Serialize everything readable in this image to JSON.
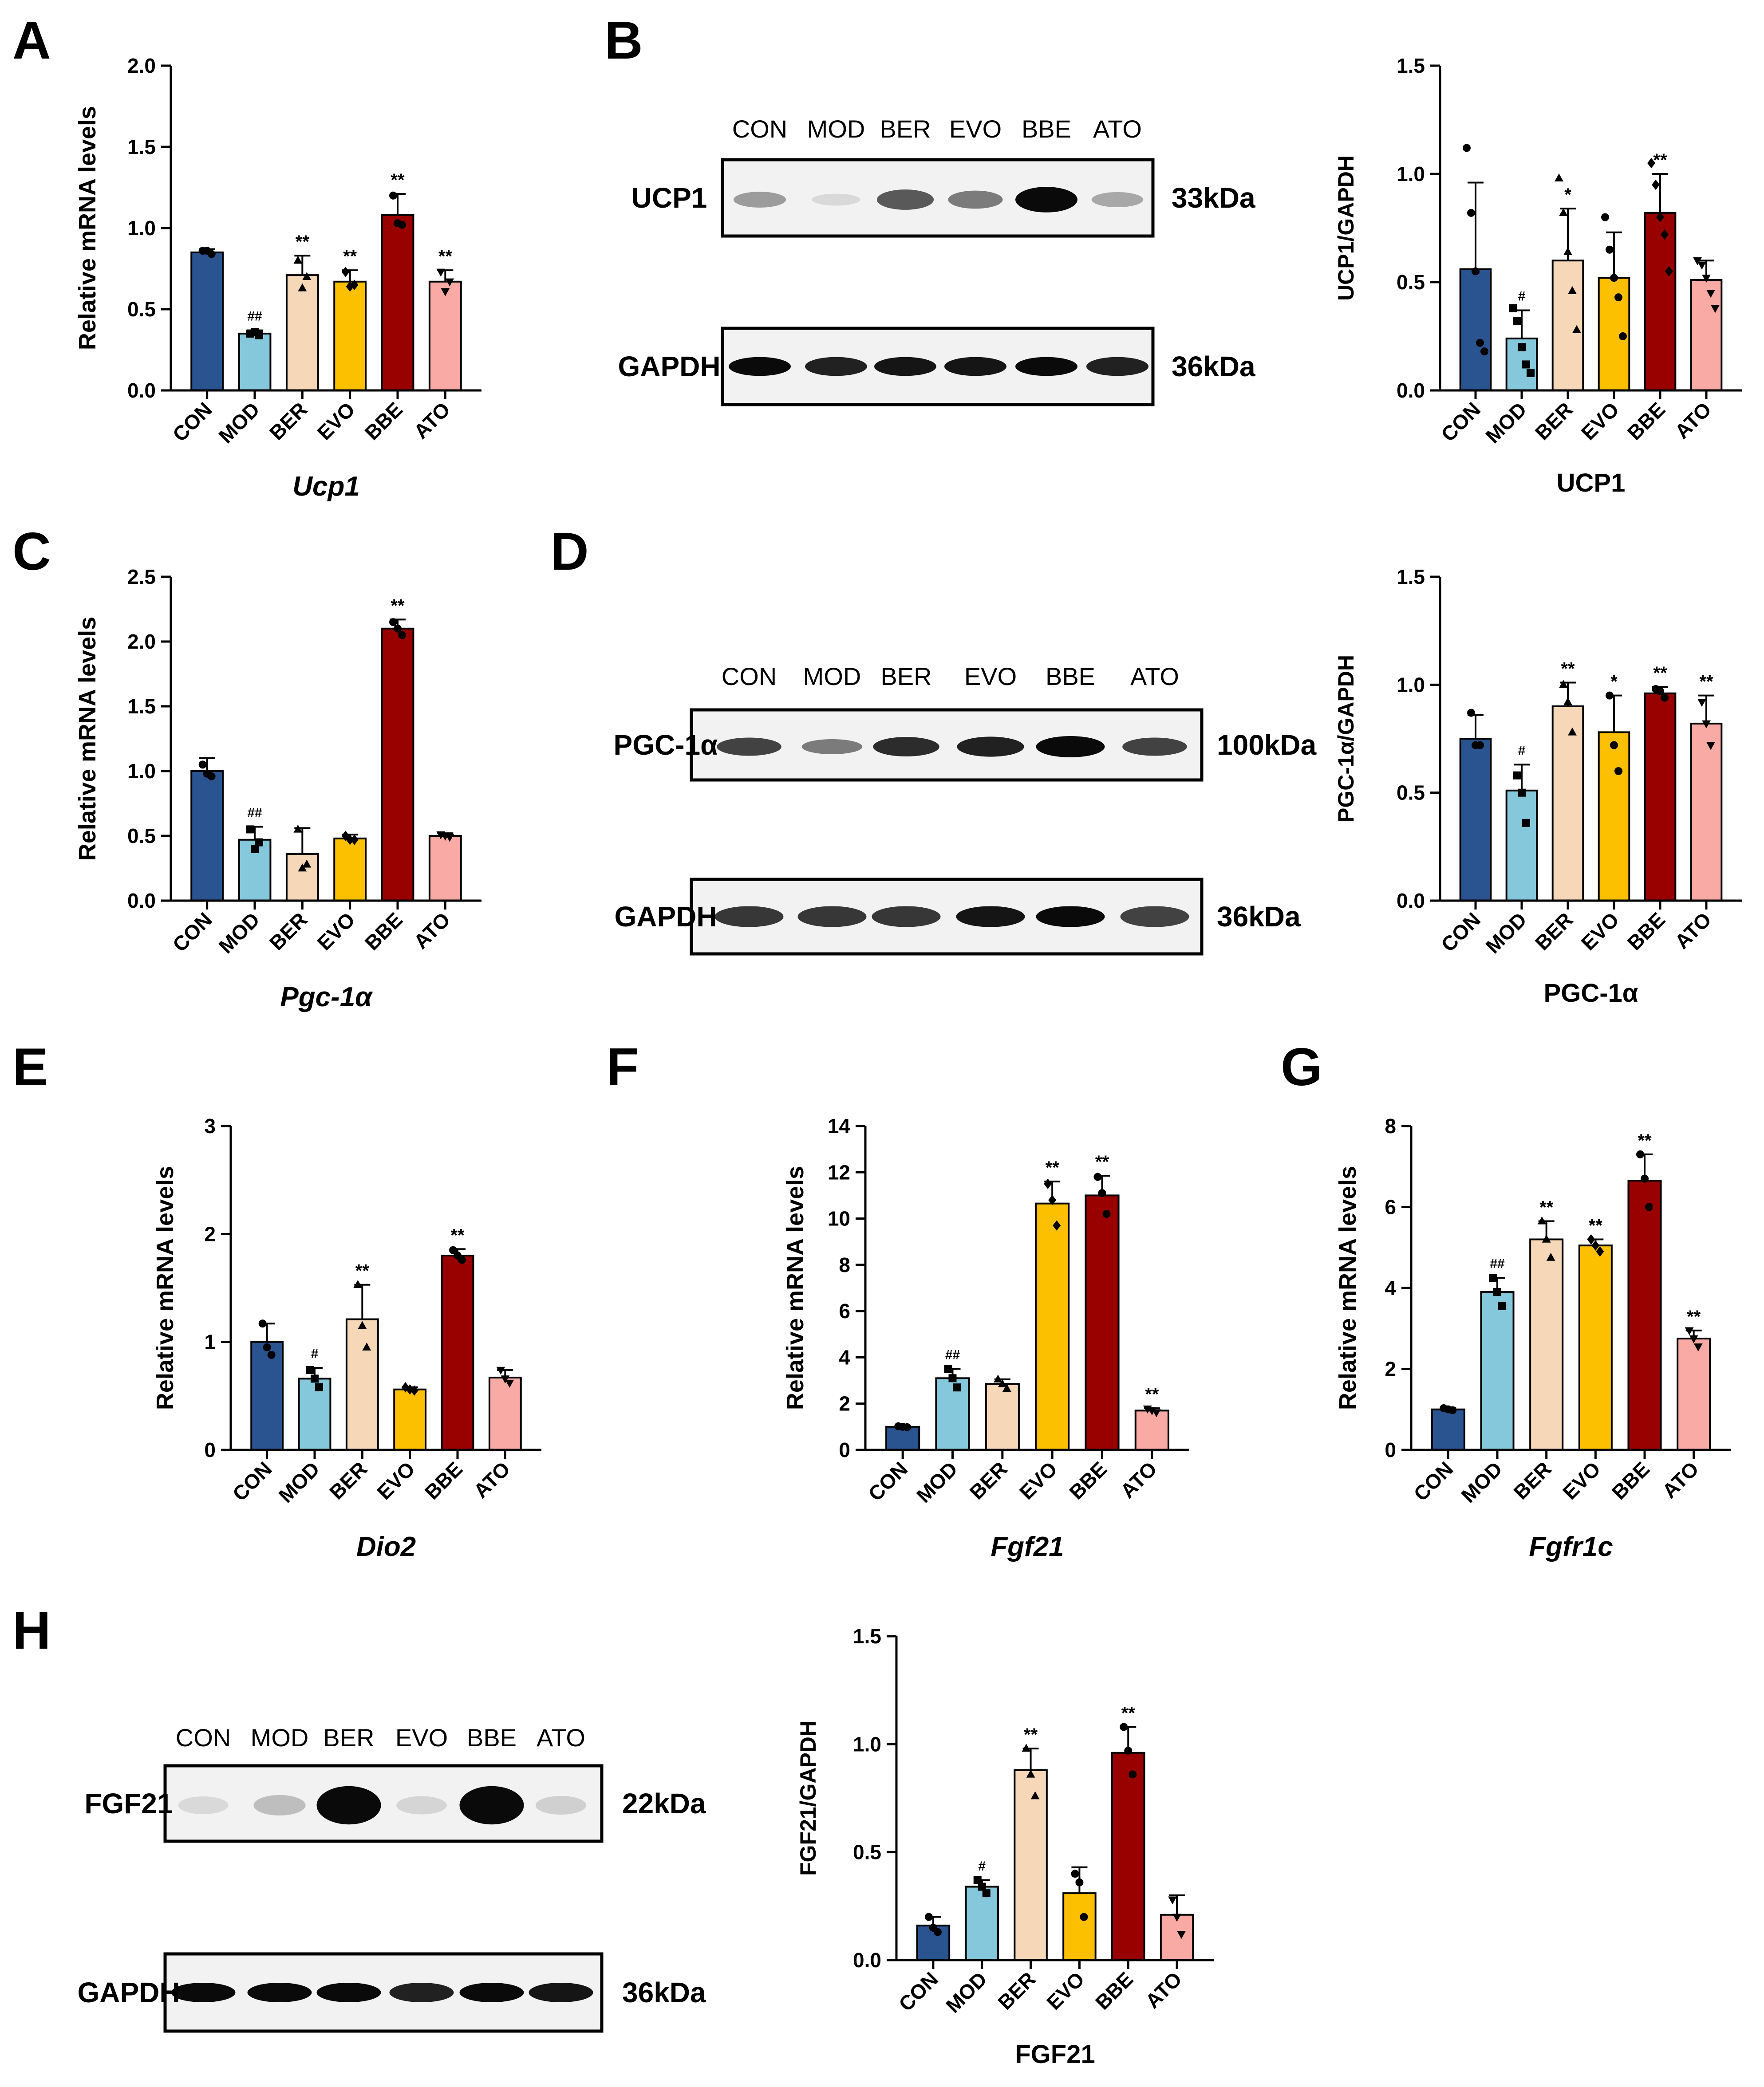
{
  "colors": {
    "CON": "#2a5490",
    "MOD": "#85c8dc",
    "BER": "#f6d7b8",
    "EVO": "#fcc000",
    "BBE": "#990000",
    "ATO": "#f9aaa5"
  },
  "groups": [
    "CON",
    "MOD",
    "BER",
    "EVO",
    "BBE",
    "ATO"
  ],
  "panels": {
    "A": "A",
    "B": "B",
    "C": "C",
    "D": "D",
    "E": "E",
    "F": "F",
    "G": "G",
    "H": "H"
  },
  "blots": [
    {
      "id": "B",
      "lanes": [
        "CON",
        "MOD",
        "BER",
        "EVO",
        "BBE",
        "ATO"
      ],
      "proteins": [
        {
          "name": "UCP1",
          "size": "33kDa",
          "intensity": [
            0.35,
            0.08,
            0.65,
            0.5,
            1.0,
            0.3
          ]
        },
        {
          "name": "GAPDH",
          "size": "36kDa",
          "intensity": [
            1,
            0.9,
            0.95,
            0.95,
            1,
            0.9
          ]
        }
      ]
    },
    {
      "id": "D",
      "lanes": [
        "CON",
        "MOD",
        "BER",
        "EVO",
        "BBE",
        "ATO"
      ],
      "proteins": [
        {
          "name": "PGC-1α",
          "size": "100kDa",
          "intensity": [
            0.75,
            0.5,
            0.85,
            0.9,
            1.0,
            0.75
          ]
        },
        {
          "name": "GAPDH",
          "size": "36kDa",
          "intensity": [
            0.8,
            0.8,
            0.8,
            0.95,
            1.0,
            0.75
          ]
        }
      ]
    },
    {
      "id": "H",
      "lanes": [
        "CON",
        "MOD",
        "BER",
        "EVO",
        "BBE",
        "ATO"
      ],
      "proteins": [
        {
          "name": "FGF21",
          "size": "22kDa",
          "intensity": [
            0.08,
            0.2,
            1.0,
            0.1,
            1.0,
            0.12
          ]
        },
        {
          "name": "GAPDH",
          "size": "36kDa",
          "intensity": [
            1,
            1,
            1,
            0.9,
            1,
            0.95
          ]
        }
      ]
    }
  ],
  "chart_data": [
    {
      "id": "A",
      "type": "bar",
      "categories": [
        "CON",
        "MOD",
        "BER",
        "EVO",
        "BBE",
        "ATO"
      ],
      "values": [
        0.85,
        0.35,
        0.71,
        0.67,
        1.08,
        0.67
      ],
      "errors": [
        0.02,
        0.02,
        0.12,
        0.07,
        0.13,
        0.07
      ],
      "points": [
        [
          0.86,
          0.86,
          0.84
        ],
        [
          0.35,
          0.36,
          0.34
        ],
        [
          0.8,
          0.63,
          0.7
        ],
        [
          0.73,
          0.64,
          0.65
        ],
        [
          1.2,
          1.03,
          1.02
        ],
        [
          0.73,
          0.61,
          0.67
        ]
      ],
      "markers": [
        "circle",
        "square",
        "triangle",
        "diamond",
        "circle",
        "triangle-down"
      ],
      "significance": [
        "",
        "##",
        "**",
        "**",
        "**",
        "**"
      ],
      "ylabel": "Relative mRNA levels",
      "xlabel": "Ucp1",
      "xlabel_italic": true,
      "ylim": [
        0,
        2.0
      ],
      "yticks": [
        "0.0",
        "0.5",
        "1.0",
        "1.5",
        "2.0"
      ]
    },
    {
      "id": "B",
      "type": "bar",
      "categories": [
        "CON",
        "MOD",
        "BER",
        "EVO",
        "BBE",
        "ATO"
      ],
      "values": [
        0.56,
        0.24,
        0.6,
        0.52,
        0.82,
        0.51
      ],
      "errors": [
        0.4,
        0.13,
        0.24,
        0.21,
        0.18,
        0.09
      ],
      "points": [
        [
          1.12,
          0.82,
          0.55,
          0.22,
          0.18
        ],
        [
          0.38,
          0.32,
          0.2,
          0.12,
          0.08
        ],
        [
          0.98,
          0.82,
          0.64,
          0.46,
          0.28
        ],
        [
          0.8,
          0.65,
          0.52,
          0.43,
          0.25
        ],
        [
          1.05,
          0.95,
          0.8,
          0.72,
          0.55
        ],
        [
          0.6,
          0.58,
          0.52,
          0.45,
          0.38
        ]
      ],
      "markers": [
        "circle",
        "square",
        "triangle",
        "circle",
        "diamond",
        "triangle-down"
      ],
      "significance": [
        "",
        "#",
        "*",
        "",
        "**",
        ""
      ],
      "ylabel": "UCP1/GAPDH",
      "xlabel": "UCP1",
      "xlabel_italic": false,
      "ylim": [
        0,
        1.5
      ],
      "yticks": [
        "0.0",
        "0.5",
        "1.0",
        "1.5"
      ]
    },
    {
      "id": "C",
      "type": "bar",
      "categories": [
        "CON",
        "MOD",
        "BER",
        "EVO",
        "BBE",
        "ATO"
      ],
      "values": [
        1.0,
        0.47,
        0.36,
        0.48,
        2.1,
        0.5
      ],
      "errors": [
        0.1,
        0.1,
        0.2,
        0.03,
        0.07,
        0.02
      ],
      "points": [
        [
          1.05,
          0.98,
          0.96
        ],
        [
          0.55,
          0.4,
          0.45
        ],
        [
          0.55,
          0.25,
          0.28
        ],
        [
          0.5,
          0.47,
          0.47
        ],
        [
          2.15,
          2.1,
          2.05
        ],
        [
          0.51,
          0.5,
          0.49
        ]
      ],
      "markers": [
        "circle",
        "square",
        "triangle",
        "diamond",
        "circle",
        "triangle-down"
      ],
      "significance": [
        "",
        "##",
        "",
        "",
        "**",
        ""
      ],
      "ylabel": "Relative mRNA levels",
      "xlabel": "Pgc-1α",
      "xlabel_italic": true,
      "ylim": [
        0,
        2.5
      ],
      "yticks": [
        "0.0",
        "0.5",
        "1.0",
        "1.5",
        "2.0",
        "2.5"
      ]
    },
    {
      "id": "D",
      "type": "bar",
      "categories": [
        "CON",
        "MOD",
        "BER",
        "EVO",
        "BBE",
        "ATO"
      ],
      "values": [
        0.75,
        0.51,
        0.9,
        0.78,
        0.96,
        0.82
      ],
      "errors": [
        0.11,
        0.12,
        0.11,
        0.17,
        0.03,
        0.13
      ],
      "points": [
        [
          0.87,
          0.72,
          0.72
        ],
        [
          0.58,
          0.5,
          0.36
        ],
        [
          1.0,
          0.92,
          0.78
        ],
        [
          0.95,
          0.72,
          0.6
        ],
        [
          0.98,
          0.97,
          0.94
        ],
        [
          0.92,
          0.82,
          0.72
        ]
      ],
      "markers": [
        "circle",
        "square",
        "triangle",
        "circle",
        "circle",
        "triangle-down"
      ],
      "significance": [
        "",
        "#",
        "**",
        "*",
        "**",
        "**"
      ],
      "ylabel": "PGC-1α/GAPDH",
      "xlabel": "PGC-1α",
      "xlabel_italic": false,
      "ylim": [
        0,
        1.5
      ],
      "yticks": [
        "0.0",
        "0.5",
        "1.0",
        "1.5"
      ]
    },
    {
      "id": "E",
      "type": "bar",
      "categories": [
        "CON",
        "MOD",
        "BER",
        "EVO",
        "BBE",
        "ATO"
      ],
      "values": [
        1.0,
        0.66,
        1.21,
        0.56,
        1.8,
        0.67
      ],
      "errors": [
        0.17,
        0.1,
        0.32,
        0.02,
        0.06,
        0.07
      ],
      "points": [
        [
          1.17,
          0.95,
          0.88
        ],
        [
          0.74,
          0.66,
          0.58
        ],
        [
          1.53,
          1.15,
          0.95
        ],
        [
          0.58,
          0.56,
          0.55
        ],
        [
          1.85,
          1.8,
          1.76
        ],
        [
          0.74,
          0.66,
          0.62
        ]
      ],
      "markers": [
        "circle",
        "square",
        "triangle",
        "diamond",
        "circle",
        "triangle-down"
      ],
      "significance": [
        "",
        "#",
        "**",
        "",
        "**",
        ""
      ],
      "ylabel": "Relative mRNA levels",
      "xlabel": "Dio2",
      "xlabel_italic": true,
      "ylim": [
        0,
        3
      ],
      "yticks": [
        "0",
        "1",
        "2",
        "3"
      ]
    },
    {
      "id": "F",
      "type": "bar",
      "categories": [
        "CON",
        "MOD",
        "BER",
        "EVO",
        "BBE",
        "ATO"
      ],
      "values": [
        1.0,
        3.1,
        2.85,
        10.65,
        11.0,
        1.7
      ],
      "errors": [
        0.05,
        0.4,
        0.2,
        0.95,
        0.85,
        0.1
      ],
      "points": [
        [
          1.02,
          1.0,
          0.98
        ],
        [
          3.5,
          3.1,
          2.7
        ],
        [
          3.05,
          2.85,
          2.65
        ],
        [
          11.5,
          10.8,
          9.7
        ],
        [
          11.8,
          11.1,
          10.2
        ],
        [
          1.78,
          1.7,
          1.62
        ]
      ],
      "markers": [
        "circle",
        "square",
        "triangle",
        "diamond",
        "circle",
        "triangle-down"
      ],
      "significance": [
        "",
        "##",
        "",
        "**",
        "**",
        "**"
      ],
      "ylabel": "Relative mRNA levels",
      "xlabel": "Fgf21",
      "xlabel_italic": true,
      "ylim": [
        0,
        14
      ],
      "yticks": [
        "0",
        "2",
        "4",
        "6",
        "8",
        "10",
        "12",
        "14"
      ]
    },
    {
      "id": "G",
      "type": "bar",
      "categories": [
        "CON",
        "MOD",
        "BER",
        "EVO",
        "BBE",
        "ATO"
      ],
      "values": [
        1.0,
        3.9,
        5.2,
        5.05,
        6.65,
        2.75
      ],
      "errors": [
        0.04,
        0.35,
        0.45,
        0.15,
        0.65,
        0.2
      ],
      "points": [
        [
          1.03,
          1.0,
          0.98
        ],
        [
          4.25,
          3.9,
          3.55
        ],
        [
          5.65,
          5.2,
          4.75
        ],
        [
          5.2,
          5.05,
          4.9
        ],
        [
          7.3,
          6.7,
          6.0
        ],
        [
          2.95,
          2.75,
          2.55
        ]
      ],
      "markers": [
        "circle",
        "square",
        "triangle",
        "diamond",
        "circle",
        "triangle-down"
      ],
      "significance": [
        "",
        "##",
        "**",
        "**",
        "**",
        "**"
      ],
      "ylabel": "Relative mRNA levels",
      "xlabel": "Fgfr1c",
      "xlabel_italic": true,
      "ylim": [
        0,
        8
      ],
      "yticks": [
        "0",
        "2",
        "4",
        "6",
        "8"
      ]
    },
    {
      "id": "H",
      "type": "bar",
      "categories": [
        "CON",
        "MOD",
        "BER",
        "EVO",
        "BBE",
        "ATO"
      ],
      "values": [
        0.16,
        0.34,
        0.88,
        0.31,
        0.96,
        0.21
      ],
      "errors": [
        0.04,
        0.03,
        0.1,
        0.12,
        0.12,
        0.09
      ],
      "points": [
        [
          0.2,
          0.15,
          0.13
        ],
        [
          0.37,
          0.34,
          0.31
        ],
        [
          0.98,
          0.86,
          0.76
        ],
        [
          0.4,
          0.36,
          0.2
        ],
        [
          1.08,
          0.97,
          0.86
        ],
        [
          0.28,
          0.2,
          0.12
        ]
      ],
      "markers": [
        "circle",
        "square",
        "triangle",
        "circle",
        "circle",
        "triangle-down"
      ],
      "significance": [
        "",
        "#",
        "**",
        "",
        "**",
        ""
      ],
      "ylabel": "FGF21/GAPDH",
      "xlabel": "FGF21",
      "xlabel_italic": false,
      "ylim": [
        0,
        1.5
      ],
      "yticks": [
        "0.0",
        "0.5",
        "1.0",
        "1.5"
      ]
    }
  ]
}
